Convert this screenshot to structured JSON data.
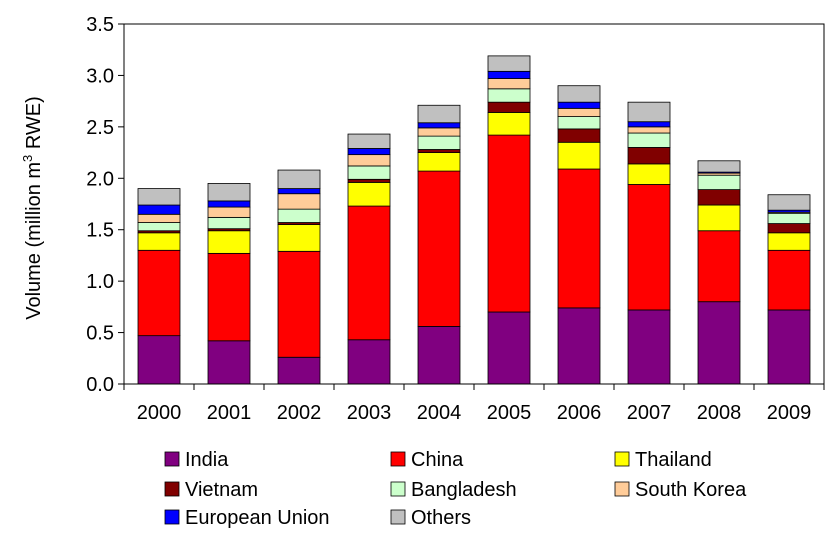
{
  "chart_data": {
    "type": "bar",
    "stacked": true,
    "title": "",
    "xlabel": "",
    "ylabel": "Volume (million m³ RWE)",
    "ylabel_parts": [
      "Volume (million m",
      "3",
      " RWE)"
    ],
    "ylim": [
      0,
      3.5
    ],
    "yticks": [
      0.0,
      0.5,
      1.0,
      1.5,
      2.0,
      2.5,
      3.0,
      3.5
    ],
    "ytick_labels": [
      "0.0",
      "0.5",
      "1.0",
      "1.5",
      "2.0",
      "2.5",
      "3.0",
      "3.5"
    ],
    "grid": false,
    "legend_position": "bottom",
    "categories": [
      "2000",
      "2001",
      "2002",
      "2003",
      "2004",
      "2005",
      "2006",
      "2007",
      "2008",
      "2009"
    ],
    "series": [
      {
        "name": "India",
        "color": "#800080",
        "values": [
          0.47,
          0.42,
          0.26,
          0.43,
          0.56,
          0.7,
          0.74,
          0.72,
          0.8,
          0.72
        ]
      },
      {
        "name": "China",
        "color": "#ff0000",
        "values": [
          0.83,
          0.85,
          1.03,
          1.3,
          1.51,
          1.72,
          1.35,
          1.22,
          0.69,
          0.58
        ]
      },
      {
        "name": "Thailand",
        "color": "#ffff00",
        "values": [
          0.17,
          0.22,
          0.26,
          0.23,
          0.18,
          0.22,
          0.26,
          0.2,
          0.25,
          0.17
        ]
      },
      {
        "name": "Vietnam",
        "color": "#800000",
        "values": [
          0.02,
          0.02,
          0.02,
          0.03,
          0.03,
          0.1,
          0.13,
          0.16,
          0.15,
          0.09
        ]
      },
      {
        "name": "Bangladesh",
        "color": "#ccffcc",
        "values": [
          0.08,
          0.11,
          0.13,
          0.13,
          0.13,
          0.13,
          0.12,
          0.14,
          0.14,
          0.1
        ]
      },
      {
        "name": "South Korea",
        "color": "#ffcc99",
        "values": [
          0.08,
          0.1,
          0.15,
          0.11,
          0.08,
          0.1,
          0.08,
          0.06,
          0.02,
          0.01
        ]
      },
      {
        "name": "European Union",
        "color": "#0000ff",
        "values": [
          0.09,
          0.06,
          0.05,
          0.06,
          0.05,
          0.07,
          0.06,
          0.05,
          0.01,
          0.02
        ]
      },
      {
        "name": "Others",
        "color": "#c0c0c0",
        "values": [
          0.16,
          0.17,
          0.18,
          0.14,
          0.17,
          0.15,
          0.16,
          0.19,
          0.11,
          0.15
        ]
      }
    ]
  }
}
